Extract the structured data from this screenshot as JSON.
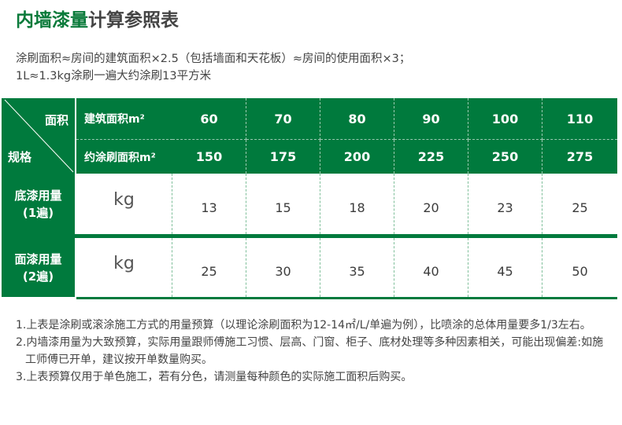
{
  "title": {
    "green": "内墙漆量",
    "dark": "计算参照表"
  },
  "intro": [
    "涂刷面积≈房间的建筑面积×2.5（包括墙面和天花板）≈房间的使用面积×3；",
    "1L≈1.3kg涂刷一遍大约涂刷13平方米"
  ],
  "table": {
    "corner_top": "面积",
    "corner_bottom": "规格",
    "row_header_1": "建筑面积m²",
    "row_header_2": "约涂刷面积m²",
    "building_area": [
      "60",
      "70",
      "80",
      "90",
      "100",
      "110"
    ],
    "paint_area": [
      "150",
      "175",
      "200",
      "225",
      "250",
      "275"
    ],
    "rows": [
      {
        "label": "底漆用量\n(1遍)",
        "unit": "kg",
        "values": [
          "13",
          "15",
          "18",
          "20",
          "23",
          "25"
        ]
      },
      {
        "label": "面漆用量\n(2遍)",
        "unit": "kg",
        "values": [
          "25",
          "30",
          "35",
          "40",
          "45",
          "50"
        ]
      }
    ],
    "colors": {
      "green": "#007a3d"
    }
  },
  "notes": [
    "1.上表是涂刷或滚涂施工方式的用量预算（以理论涂刷面积为12-14㎡/L/单遍为例），比喷涂的总体用量要多1/3左右。",
    "2.内墙漆用量为大致预算，实际用量跟师傅施工习惯、层高、门窗、柜子、底材处理等多种因素相关，可能出现偏差:如施工师傅已开单，建议按开单数量购买。",
    "3.上表预算仅用于单色施工，若有分色，请测量每种颜色的实际施工面积后购买。"
  ]
}
